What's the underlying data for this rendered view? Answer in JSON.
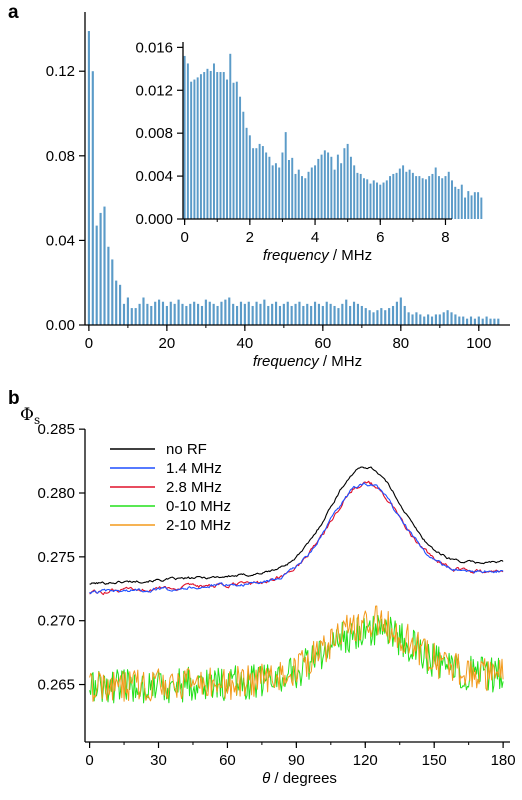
{
  "panel_labels": {
    "a": "a",
    "b": "b"
  },
  "chart_data": [
    {
      "id": "a-main",
      "type": "bar",
      "xlabel_italic": "frequency",
      "xlabel_rest": " / MHz",
      "xlim": [
        -1,
        108
      ],
      "ylim": [
        0,
        0.148
      ],
      "xticks": [
        0,
        20,
        40,
        60,
        80,
        100
      ],
      "yticks": [
        0.0,
        0.04,
        0.08,
        0.12
      ],
      "ytick_labels": [
        "0.00",
        "0.04",
        "0.08",
        "0.12"
      ],
      "bar_color": "#5b9bc8",
      "x": [
        0,
        1,
        2,
        3,
        4,
        5,
        6,
        7,
        8,
        9,
        10,
        11,
        12,
        13,
        14,
        15,
        16,
        17,
        18,
        19,
        20,
        21,
        22,
        23,
        24,
        25,
        26,
        27,
        28,
        29,
        30,
        31,
        32,
        33,
        34,
        35,
        36,
        37,
        38,
        39,
        40,
        41,
        42,
        43,
        44,
        45,
        46,
        47,
        48,
        49,
        50,
        51,
        52,
        53,
        54,
        55,
        56,
        57,
        58,
        59,
        60,
        61,
        62,
        63,
        64,
        65,
        66,
        67,
        68,
        69,
        70,
        71,
        72,
        73,
        74,
        75,
        76,
        77,
        78,
        79,
        80,
        81,
        82,
        83,
        84,
        85,
        86,
        87,
        88,
        89,
        90,
        91,
        92,
        93,
        94,
        95,
        96,
        97,
        98,
        99,
        100,
        101,
        102,
        103,
        104,
        105
      ],
      "values": [
        0.139,
        0.12,
        0.047,
        0.053,
        0.056,
        0.037,
        0.031,
        0.021,
        0.019,
        0.01,
        0.013,
        0.008,
        0.008,
        0.01,
        0.013,
        0.01,
        0.009,
        0.011,
        0.012,
        0.011,
        0.009,
        0.011,
        0.01,
        0.012,
        0.01,
        0.009,
        0.01,
        0.011,
        0.01,
        0.009,
        0.012,
        0.011,
        0.01,
        0.009,
        0.011,
        0.012,
        0.013,
        0.01,
        0.009,
        0.011,
        0.01,
        0.011,
        0.009,
        0.011,
        0.01,
        0.012,
        0.009,
        0.01,
        0.011,
        0.009,
        0.01,
        0.011,
        0.009,
        0.01,
        0.011,
        0.009,
        0.01,
        0.009,
        0.011,
        0.01,
        0.009,
        0.011,
        0.01,
        0.009,
        0.008,
        0.01,
        0.012,
        0.009,
        0.011,
        0.01,
        0.009,
        0.008,
        0.007,
        0.006,
        0.007,
        0.008,
        0.007,
        0.008,
        0.009,
        0.011,
        0.013,
        0.009,
        0.006,
        0.005,
        0.006,
        0.005,
        0.004,
        0.005,
        0.004,
        0.005,
        0.005,
        0.006,
        0.007,
        0.006,
        0.005,
        0.004,
        0.004,
        0.003,
        0.004,
        0.003,
        0.004,
        0.003,
        0.004,
        0.003,
        0.003,
        0.003
      ]
    },
    {
      "id": "a-inset",
      "type": "bar",
      "xlabel_italic": "frequency",
      "xlabel_rest": " / MHz",
      "xlim": [
        -0.05,
        8.2
      ],
      "ylim": [
        0,
        0.0165
      ],
      "xticks": [
        0,
        2,
        4,
        6,
        8
      ],
      "yticks": [
        0.0,
        0.004,
        0.008,
        0.012,
        0.016
      ],
      "ytick_labels": [
        "0.000",
        "0.004",
        "0.008",
        "0.012",
        "0.016"
      ],
      "bar_color": "#5b9bc8",
      "x_start": 0,
      "x_step": 0.1,
      "values": [
        0.0152,
        0.0145,
        0.0128,
        0.013,
        0.0132,
        0.0135,
        0.0137,
        0.014,
        0.0138,
        0.0145,
        0.0137,
        0.0137,
        0.0137,
        0.013,
        0.0154,
        0.0127,
        0.0128,
        0.0114,
        0.01,
        0.0085,
        0.0078,
        0.0066,
        0.0066,
        0.007,
        0.0068,
        0.0062,
        0.0058,
        0.005,
        0.0052,
        0.0048,
        0.0062,
        0.0081,
        0.0055,
        0.0057,
        0.0042,
        0.0046,
        0.004,
        0.0038,
        0.0044,
        0.0048,
        0.005,
        0.0056,
        0.006,
        0.0064,
        0.0062,
        0.0058,
        0.0046,
        0.006,
        0.0052,
        0.0066,
        0.007,
        0.0058,
        0.005,
        0.0043,
        0.0042,
        0.0038,
        0.0037,
        0.0033,
        0.0036,
        0.0034,
        0.0032,
        0.0034,
        0.0036,
        0.004,
        0.0042,
        0.0043,
        0.0047,
        0.005,
        0.0044,
        0.0046,
        0.0043,
        0.004,
        0.004,
        0.0038,
        0.0037,
        0.004,
        0.0042,
        0.0048,
        0.004,
        0.0038,
        0.004,
        0.0044,
        0.0036,
        0.003,
        0.0028,
        0.0032,
        0.002,
        0.0026,
        0.0022,
        0.0025,
        0.0025,
        0.002
      ]
    },
    {
      "id": "b",
      "type": "line",
      "ylabel_symbol": "Φ",
      "ylabel_sub": "s",
      "xlabel_italic": "θ",
      "xlabel_rest": " / degrees",
      "xlim": [
        -2,
        183
      ],
      "ylim": [
        0.2605,
        0.2865
      ],
      "ylim_floor": 0.2605,
      "xticks": [
        0,
        30,
        60,
        90,
        120,
        150,
        180
      ],
      "yticks": [
        0.265,
        0.27,
        0.275,
        0.28,
        0.285
      ],
      "ytick_labels": [
        "0.265",
        "0.270",
        "0.275",
        "0.280",
        "0.285"
      ],
      "series": [
        {
          "name": "no RF",
          "color": "#000000",
          "kind": "smooth",
          "base": 0.2729,
          "peak_center": 120,
          "peak_height": 0.008,
          "peak_width": 22,
          "slope": 9.5e-06,
          "noise": 9e-05
        },
        {
          "name": "1.4 MHz",
          "color": "#1f4fff",
          "kind": "smooth",
          "base": 0.2722,
          "peak_center": 120,
          "peak_height": 0.0074,
          "peak_width": 22,
          "slope": 9.5e-06,
          "noise": 0.00012
        },
        {
          "name": "2.8 MHz",
          "color": "#e0102a",
          "kind": "smooth",
          "base": 0.2722,
          "peak_center": 120,
          "peak_height": 0.0074,
          "peak_width": 22,
          "slope": 9.5e-06,
          "noise": 0.00014
        },
        {
          "name": "0-10 MHz",
          "color": "#22e01a",
          "kind": "noisy",
          "base": 0.2648,
          "peak_center": 122,
          "peak_height": 0.004,
          "peak_width": 26,
          "slope": 5e-06,
          "noise": 0.0014
        },
        {
          "name": "2-10 MHz",
          "color": "#f39a1c",
          "kind": "noisy",
          "base": 0.2648,
          "peak_center": 122,
          "peak_height": 0.0045,
          "peak_width": 26,
          "slope": 5e-06,
          "noise": 0.0013
        }
      ]
    }
  ]
}
